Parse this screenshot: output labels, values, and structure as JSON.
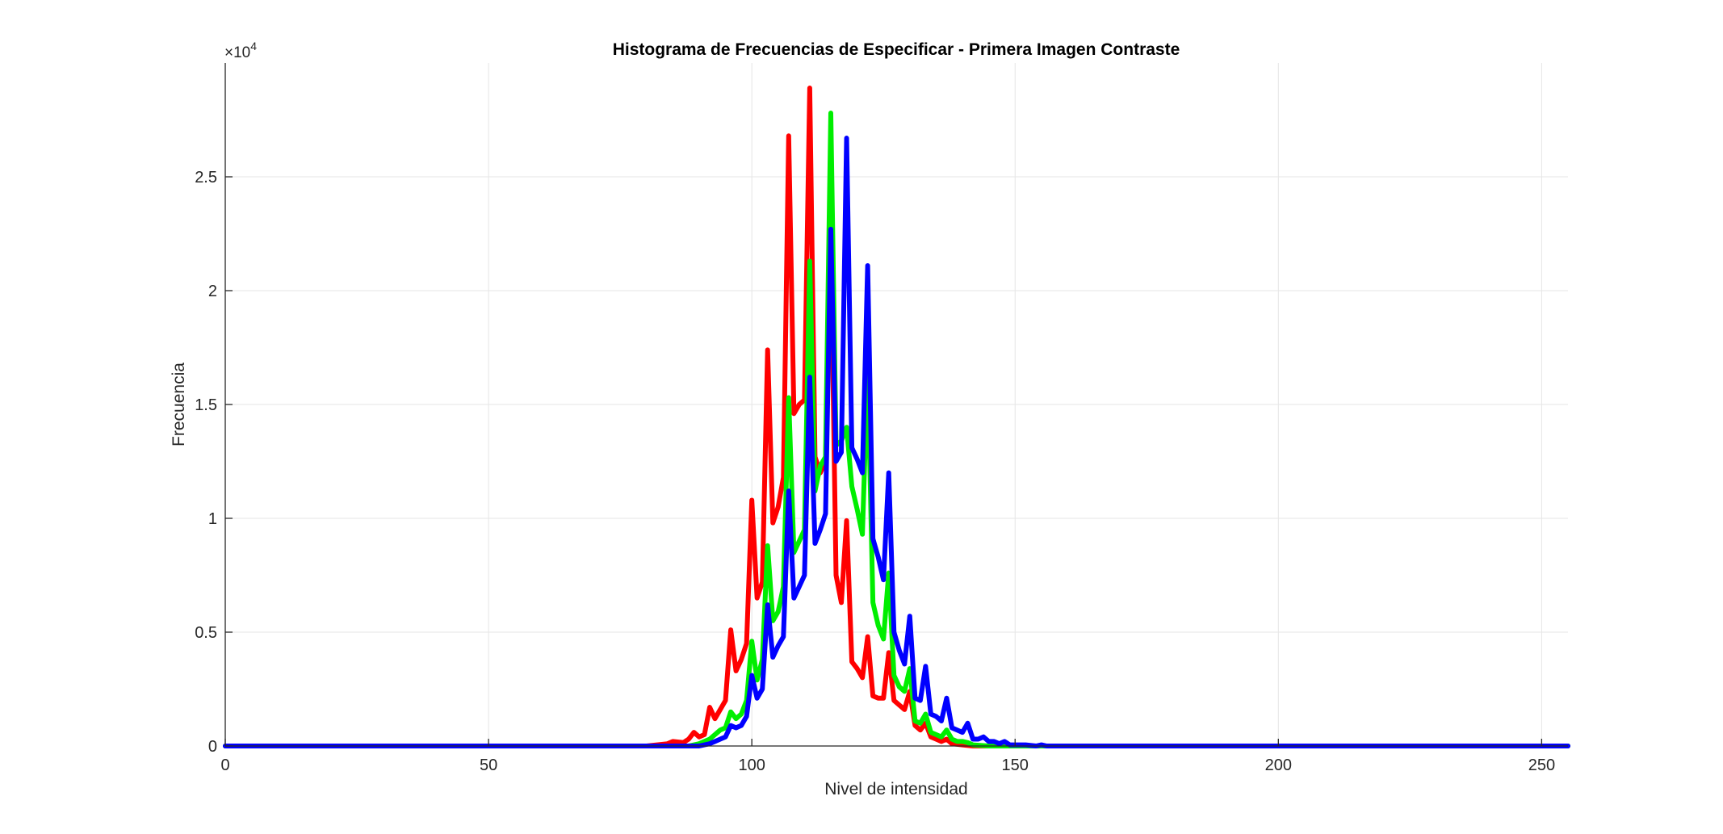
{
  "chart_data": {
    "type": "line",
    "title": "Histograma de Frecuencias de Especificar - Primera Imagen Contraste",
    "xlabel": "Nivel de intensidad",
    "ylabel": "Frecuencia",
    "y_exponent_label": "×10",
    "y_exponent_power": "4",
    "xlim": [
      0,
      255
    ],
    "ylim": [
      0,
      30000
    ],
    "x_ticks": [
      0,
      50,
      100,
      150,
      200,
      250
    ],
    "x_tick_labels": [
      "0",
      "50",
      "100",
      "150",
      "200",
      "250"
    ],
    "y_ticks": [
      0,
      5000,
      10000,
      15000,
      20000,
      25000
    ],
    "y_tick_labels": [
      "0",
      "0.5",
      "1",
      "1.5",
      "2",
      "2.5"
    ],
    "grid": true,
    "series": [
      {
        "color": "#ff0000",
        "points": [
          [
            0,
            0
          ],
          [
            80,
            0
          ],
          [
            82,
            50
          ],
          [
            84,
            100
          ],
          [
            85,
            200
          ],
          [
            87,
            150
          ],
          [
            88,
            300
          ],
          [
            89,
            600
          ],
          [
            90,
            400
          ],
          [
            91,
            500
          ],
          [
            92,
            1700
          ],
          [
            93,
            1200
          ],
          [
            95,
            2000
          ],
          [
            96,
            5100
          ],
          [
            97,
            3300
          ],
          [
            98,
            3800
          ],
          [
            99,
            4500
          ],
          [
            100,
            10800
          ],
          [
            101,
            6500
          ],
          [
            102,
            7200
          ],
          [
            103,
            17400
          ],
          [
            104,
            9800
          ],
          [
            105,
            10500
          ],
          [
            106,
            11800
          ],
          [
            107,
            26800
          ],
          [
            108,
            14600
          ],
          [
            109,
            15000
          ],
          [
            110,
            15200
          ],
          [
            111,
            28900
          ],
          [
            112,
            12700
          ],
          [
            113,
            12000
          ],
          [
            114,
            12500
          ],
          [
            115,
            22500
          ],
          [
            116,
            7500
          ],
          [
            117,
            6300
          ],
          [
            118,
            9900
          ],
          [
            119,
            3700
          ],
          [
            120,
            3400
          ],
          [
            121,
            3000
          ],
          [
            122,
            4800
          ],
          [
            123,
            2200
          ],
          [
            124,
            2100
          ],
          [
            125,
            2100
          ],
          [
            126,
            4100
          ],
          [
            127,
            2000
          ],
          [
            128,
            1800
          ],
          [
            129,
            1600
          ],
          [
            130,
            2400
          ],
          [
            131,
            900
          ],
          [
            132,
            700
          ],
          [
            133,
            1000
          ],
          [
            134,
            400
          ],
          [
            135,
            300
          ],
          [
            136,
            200
          ],
          [
            137,
            300
          ],
          [
            138,
            100
          ],
          [
            140,
            50
          ],
          [
            142,
            0
          ],
          [
            255,
            0
          ]
        ]
      },
      {
        "color": "#00ee00",
        "points": [
          [
            0,
            0
          ],
          [
            88,
            0
          ],
          [
            90,
            100
          ],
          [
            92,
            300
          ],
          [
            93,
            500
          ],
          [
            94,
            700
          ],
          [
            95,
            800
          ],
          [
            96,
            1500
          ],
          [
            97,
            1200
          ],
          [
            98,
            1400
          ],
          [
            99,
            2000
          ],
          [
            100,
            4600
          ],
          [
            101,
            2900
          ],
          [
            102,
            3800
          ],
          [
            103,
            8800
          ],
          [
            104,
            5500
          ],
          [
            105,
            5900
          ],
          [
            106,
            7000
          ],
          [
            107,
            15300
          ],
          [
            108,
            8500
          ],
          [
            109,
            9000
          ],
          [
            110,
            9500
          ],
          [
            111,
            21300
          ],
          [
            112,
            11200
          ],
          [
            113,
            12300
          ],
          [
            114,
            12700
          ],
          [
            115,
            27800
          ],
          [
            116,
            13200
          ],
          [
            117,
            13400
          ],
          [
            118,
            14000
          ],
          [
            119,
            11400
          ],
          [
            120,
            10400
          ],
          [
            121,
            9300
          ],
          [
            122,
            16600
          ],
          [
            123,
            6300
          ],
          [
            124,
            5300
          ],
          [
            125,
            4700
          ],
          [
            126,
            7600
          ],
          [
            127,
            3100
          ],
          [
            128,
            2600
          ],
          [
            129,
            2400
          ],
          [
            130,
            3400
          ],
          [
            131,
            1100
          ],
          [
            132,
            1000
          ],
          [
            133,
            1400
          ],
          [
            134,
            600
          ],
          [
            135,
            500
          ],
          [
            136,
            400
          ],
          [
            137,
            700
          ],
          [
            138,
            300
          ],
          [
            139,
            200
          ],
          [
            140,
            200
          ],
          [
            141,
            150
          ],
          [
            142,
            50
          ],
          [
            145,
            0
          ],
          [
            255,
            0
          ]
        ]
      },
      {
        "color": "#0000ff",
        "points": [
          [
            0,
            0
          ],
          [
            90,
            0
          ],
          [
            92,
            100
          ],
          [
            93,
            200
          ],
          [
            94,
            300
          ],
          [
            95,
            400
          ],
          [
            96,
            900
          ],
          [
            97,
            800
          ],
          [
            98,
            900
          ],
          [
            99,
            1300
          ],
          [
            100,
            3100
          ],
          [
            101,
            2100
          ],
          [
            102,
            2500
          ],
          [
            103,
            6200
          ],
          [
            104,
            3900
          ],
          [
            105,
            4400
          ],
          [
            106,
            4800
          ],
          [
            107,
            11200
          ],
          [
            108,
            6500
          ],
          [
            109,
            7000
          ],
          [
            110,
            7500
          ],
          [
            111,
            16200
          ],
          [
            112,
            8900
          ],
          [
            113,
            9500
          ],
          [
            114,
            10200
          ],
          [
            115,
            22700
          ],
          [
            116,
            12500
          ],
          [
            117,
            12900
          ],
          [
            118,
            26700
          ],
          [
            119,
            13100
          ],
          [
            120,
            12600
          ],
          [
            121,
            12000
          ],
          [
            122,
            21100
          ],
          [
            123,
            9100
          ],
          [
            124,
            8300
          ],
          [
            125,
            7300
          ],
          [
            126,
            12000
          ],
          [
            127,
            5000
          ],
          [
            128,
            4200
          ],
          [
            129,
            3600
          ],
          [
            130,
            5700
          ],
          [
            131,
            2100
          ],
          [
            132,
            2000
          ],
          [
            133,
            3500
          ],
          [
            134,
            1400
          ],
          [
            135,
            1300
          ],
          [
            136,
            1100
          ],
          [
            137,
            2100
          ],
          [
            138,
            800
          ],
          [
            139,
            700
          ],
          [
            140,
            600
          ],
          [
            141,
            1000
          ],
          [
            142,
            300
          ],
          [
            143,
            300
          ],
          [
            144,
            400
          ],
          [
            145,
            200
          ],
          [
            146,
            200
          ],
          [
            147,
            100
          ],
          [
            148,
            200
          ],
          [
            149,
            50
          ],
          [
            150,
            50
          ],
          [
            152,
            50
          ],
          [
            154,
            0
          ],
          [
            155,
            50
          ],
          [
            156,
            0
          ],
          [
            255,
            0
          ]
        ]
      }
    ]
  }
}
